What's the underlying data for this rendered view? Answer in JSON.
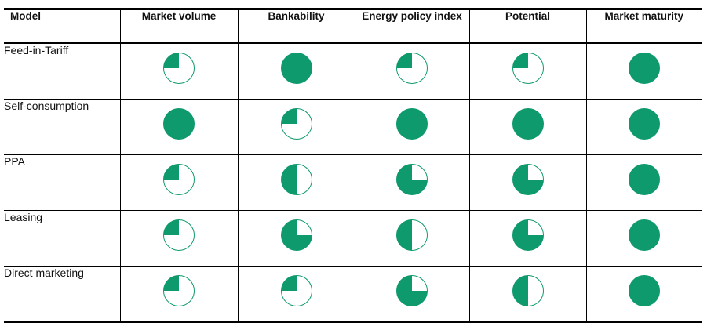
{
  "accent_color": "#0e9a6d",
  "chart_data": {
    "type": "table",
    "title": "",
    "columns": [
      "Model",
      "Market volume",
      "Bankability",
      "Energy policy index",
      "Potential",
      "Market maturity"
    ],
    "rows": [
      {
        "model": "Feed-in-Tariff",
        "values": [
          0.25,
          1.0,
          0.25,
          0.25,
          1.0
        ]
      },
      {
        "model": "Self-consumption",
        "values": [
          1.0,
          0.25,
          1.0,
          1.0,
          1.0
        ]
      },
      {
        "model": "PPA",
        "values": [
          0.25,
          0.5,
          0.75,
          0.75,
          1.0
        ]
      },
      {
        "model": "Leasing",
        "values": [
          0.25,
          0.75,
          0.5,
          0.75,
          1.0
        ]
      },
      {
        "model": "Direct marketing",
        "values": [
          0.25,
          0.25,
          0.75,
          0.5,
          1.0
        ]
      }
    ],
    "value_encoding": "harvey-ball fraction filled; filled wedge sweeps counterclockwise from 12 o'clock",
    "fill_color": "#0e9a6d",
    "legend_position": "none",
    "grid": "table borders: thick top, thick header underline, thin row/column separators, medium bottom"
  }
}
